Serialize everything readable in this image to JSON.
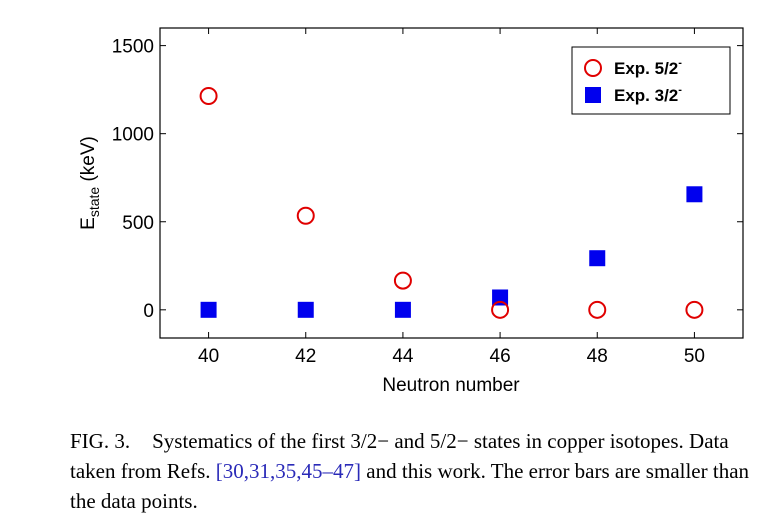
{
  "chart_data": {
    "type": "scatter",
    "xlabel": "Neutron number",
    "ylabel_main": "E",
    "ylabel_sub": "state",
    "ylabel_unit": " (keV)",
    "xlim": [
      39,
      51
    ],
    "ylim": [
      -160,
      1600
    ],
    "xticks": [
      40,
      42,
      44,
      46,
      48,
      50
    ],
    "yticks": [
      0,
      500,
      1000,
      1500
    ],
    "legend_position": "top-right",
    "grid": false,
    "series": [
      {
        "name": "Exp. 5/2",
        "name_sup": "-",
        "marker": "open-circle",
        "color": "#e00000",
        "x": [
          40,
          42,
          44,
          46,
          48,
          50
        ],
        "y": [
          1214,
          534,
          166,
          0,
          0,
          0
        ]
      },
      {
        "name": "Exp. 3/2",
        "name_sup": "-",
        "marker": "filled-square",
        "color": "#0000ee",
        "x": [
          40,
          42,
          44,
          46,
          48,
          50
        ],
        "y": [
          0,
          0,
          0,
          70,
          293,
          656
        ]
      }
    ]
  },
  "caption": {
    "label": "FIG. 3.",
    "text_before": "Systematics of the first 3/2− and 5/2− states in copper isotopes. Data taken from Refs. ",
    "refs": "[30,31,35,45–47]",
    "text_after": " and this work. The error bars are smaller than the data points."
  }
}
